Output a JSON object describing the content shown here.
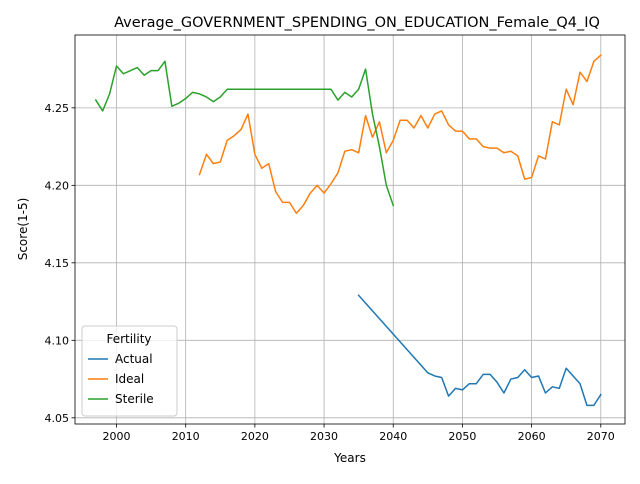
{
  "chart_data": {
    "type": "line",
    "title": "Average_GOVERNMENT_SPENDING_ON_EDUCATION_Female_Q4_IQ",
    "xlabel": "Years",
    "ylabel": "Score(1-5)",
    "xlim": [
      1994,
      2073.5
    ],
    "ylim": [
      4.046,
      4.297
    ],
    "x_ticks": [
      2000,
      2010,
      2020,
      2030,
      2040,
      2050,
      2060,
      2070
    ],
    "y_ticks": [
      4.05,
      4.1,
      4.15,
      4.2,
      4.25
    ],
    "y_tick_labels": [
      "4.05",
      "4.10",
      "4.15",
      "4.20",
      "4.25"
    ],
    "grid": true,
    "legend": {
      "title": "Fertility",
      "position": "lower-left"
    },
    "series": [
      {
        "name": "Actual",
        "color": "#1f77b4",
        "x": [
          2035,
          2036,
          2037,
          2038,
          2039,
          2040,
          2041,
          2042,
          2043,
          2044,
          2045,
          2046,
          2047,
          2048,
          2049,
          2050,
          2051,
          2052,
          2053,
          2054,
          2055,
          2056,
          2057,
          2058,
          2059,
          2060,
          2061,
          2062,
          2063,
          2064,
          2065,
          2066,
          2067,
          2068,
          2069,
          2070
        ],
        "y": [
          4.129,
          4.124,
          4.119,
          4.114,
          4.109,
          4.104,
          4.099,
          4.094,
          4.089,
          4.084,
          4.079,
          4.077,
          4.076,
          4.064,
          4.069,
          4.068,
          4.072,
          4.072,
          4.078,
          4.078,
          4.073,
          4.066,
          4.075,
          4.076,
          4.081,
          4.076,
          4.077,
          4.066,
          4.07,
          4.069,
          4.082,
          4.077,
          4.072,
          4.058,
          4.058,
          4.065
        ]
      },
      {
        "name": "Ideal",
        "color": "#ff7f0e",
        "x": [
          2012,
          2013,
          2014,
          2015,
          2016,
          2017,
          2018,
          2019,
          2020,
          2021,
          2022,
          2023,
          2024,
          2025,
          2026,
          2027,
          2028,
          2029,
          2030,
          2031,
          2032,
          2033,
          2034,
          2035,
          2036,
          2037,
          2038,
          2039,
          2040,
          2041,
          2042,
          2043,
          2044,
          2045,
          2046,
          2047,
          2048,
          2049,
          2050,
          2051,
          2052,
          2053,
          2054,
          2055,
          2056,
          2057,
          2058,
          2059,
          2060,
          2061,
          2062,
          2063,
          2064,
          2065,
          2066,
          2067,
          2068,
          2069,
          2070
        ],
        "y": [
          4.207,
          4.22,
          4.214,
          4.215,
          4.229,
          4.232,
          4.236,
          4.246,
          4.22,
          4.211,
          4.214,
          4.196,
          4.189,
          4.189,
          4.182,
          4.187,
          4.195,
          4.2,
          4.195,
          4.201,
          4.208,
          4.222,
          4.223,
          4.221,
          4.245,
          4.231,
          4.241,
          4.221,
          4.229,
          4.242,
          4.242,
          4.237,
          4.245,
          4.237,
          4.246,
          4.248,
          4.239,
          4.235,
          4.235,
          4.23,
          4.23,
          4.225,
          4.224,
          4.224,
          4.221,
          4.222,
          4.219,
          4.204,
          4.205,
          4.219,
          4.217,
          4.241,
          4.239,
          4.262,
          4.252,
          4.273,
          4.267,
          4.28,
          4.284
        ]
      },
      {
        "name": "Sterile",
        "color": "#2ca02c",
        "x": [
          1997,
          1998,
          1999,
          2000,
          2001,
          2002,
          2003,
          2004,
          2005,
          2006,
          2007,
          2008,
          2009,
          2010,
          2011,
          2012,
          2013,
          2014,
          2015,
          2016,
          2017,
          2018,
          2019,
          2020,
          2021,
          2022,
          2023,
          2024,
          2025,
          2026,
          2027,
          2028,
          2029,
          2030,
          2031,
          2032,
          2033,
          2034,
          2035,
          2036,
          2037,
          2038,
          2039,
          2040
        ],
        "y": [
          4.255,
          4.248,
          4.259,
          4.277,
          4.272,
          4.274,
          4.276,
          4.271,
          4.274,
          4.274,
          4.28,
          4.251,
          4.253,
          4.256,
          4.26,
          4.259,
          4.257,
          4.254,
          4.257,
          4.262,
          4.262,
          4.262,
          4.262,
          4.262,
          4.262,
          4.262,
          4.262,
          4.262,
          4.262,
          4.262,
          4.262,
          4.262,
          4.262,
          4.262,
          4.262,
          4.255,
          4.26,
          4.257,
          4.262,
          4.275,
          4.246,
          4.225,
          4.2,
          4.187
        ]
      }
    ]
  }
}
